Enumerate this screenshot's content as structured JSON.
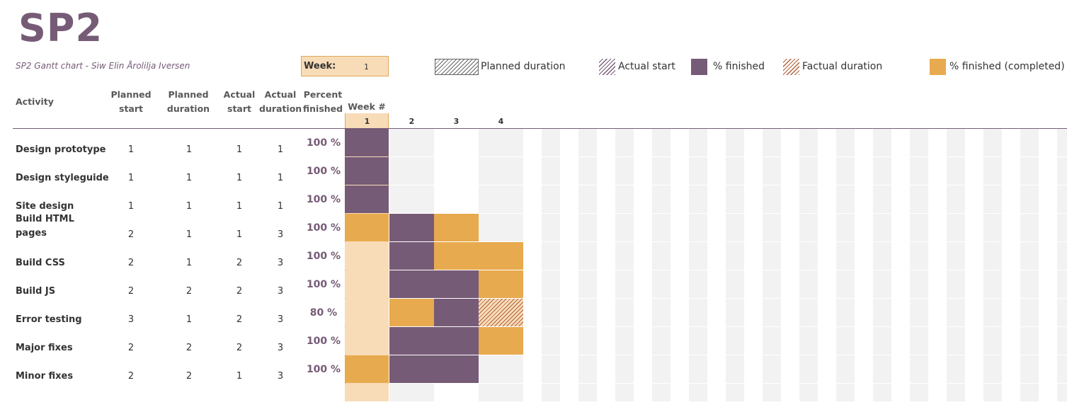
{
  "header": {
    "title": "SP2",
    "subtitle": "SP2 Gantt chart - Siw Elin Årolilja Iversen",
    "week_label": "Week:",
    "week_value": "1"
  },
  "legend": [
    {
      "label": "Planned duration",
      "style": "planned"
    },
    {
      "label": "Actual start",
      "style": "actual"
    },
    {
      "label": "% finished",
      "style": "finished"
    },
    {
      "label": "Factual duration",
      "style": "factual"
    },
    {
      "label": "% finished (completed)",
      "style": "completed"
    }
  ],
  "columns": {
    "activity": "Activity",
    "planned_start": [
      "Planned",
      "start"
    ],
    "planned_duration": [
      "Planned",
      "duration"
    ],
    "actual_start": [
      "Actual",
      "start"
    ],
    "actual_duration": [
      "Actual",
      "duration"
    ],
    "percent": [
      "Percent",
      "finished"
    ],
    "week_hash": "Week #"
  },
  "weeks": [
    "1",
    "2",
    "3",
    "4"
  ],
  "colors": {
    "purple": "#765b77",
    "orange": "#e8aa4f",
    "light_orange": "#f8dcb8",
    "grey": "#f2f2f2"
  },
  "activities": [
    {
      "name": [
        "Design prototype"
      ],
      "planned_start": "1",
      "planned_duration": "1",
      "actual_start": "1",
      "actual_duration": "1",
      "percent": "100 %",
      "cells": [
        "purple",
        "",
        "",
        ""
      ]
    },
    {
      "name": [
        "Design styleguide"
      ],
      "planned_start": "1",
      "planned_duration": "1",
      "actual_start": "1",
      "actual_duration": "1",
      "percent": "100 %",
      "cells": [
        "purple",
        "",
        "",
        ""
      ]
    },
    {
      "name": [
        "Site design"
      ],
      "planned_start": "1",
      "planned_duration": "1",
      "actual_start": "1",
      "actual_duration": "1",
      "percent": "100 %",
      "cells": [
        "purple",
        "",
        "",
        ""
      ]
    },
    {
      "name": [
        "Build HTML",
        "pages"
      ],
      "planned_start": "2",
      "planned_duration": "1",
      "actual_start": "1",
      "actual_duration": "3",
      "percent": "100 %",
      "cells": [
        "orange",
        "purple",
        "orange",
        ""
      ]
    },
    {
      "name": [
        "Build CSS"
      ],
      "planned_start": "2",
      "planned_duration": "1",
      "actual_start": "2",
      "actual_duration": "3",
      "percent": "100 %",
      "cells": [
        "light",
        "purple",
        "orange",
        "orange"
      ]
    },
    {
      "name": [
        "Build JS"
      ],
      "planned_start": "2",
      "planned_duration": "2",
      "actual_start": "2",
      "actual_duration": "3",
      "percent": "100 %",
      "cells": [
        "light",
        "purple",
        "purple",
        "orange"
      ]
    },
    {
      "name": [
        "Error testing"
      ],
      "planned_start": "3",
      "planned_duration": "1",
      "actual_start": "2",
      "actual_duration": "3",
      "percent": "80 %",
      "cells": [
        "light",
        "orange",
        "purple",
        "factual"
      ]
    },
    {
      "name": [
        "Major fixes"
      ],
      "planned_start": "2",
      "planned_duration": "2",
      "actual_start": "2",
      "actual_duration": "3",
      "percent": "100 %",
      "cells": [
        "light",
        "purple",
        "purple",
        "orange"
      ]
    },
    {
      "name": [
        "Minor fixes"
      ],
      "planned_start": "2",
      "planned_duration": "2",
      "actual_start": "1",
      "actual_duration": "3",
      "percent": "100 %",
      "cells": [
        "orange",
        "purple",
        "purple",
        ""
      ]
    }
  ]
}
